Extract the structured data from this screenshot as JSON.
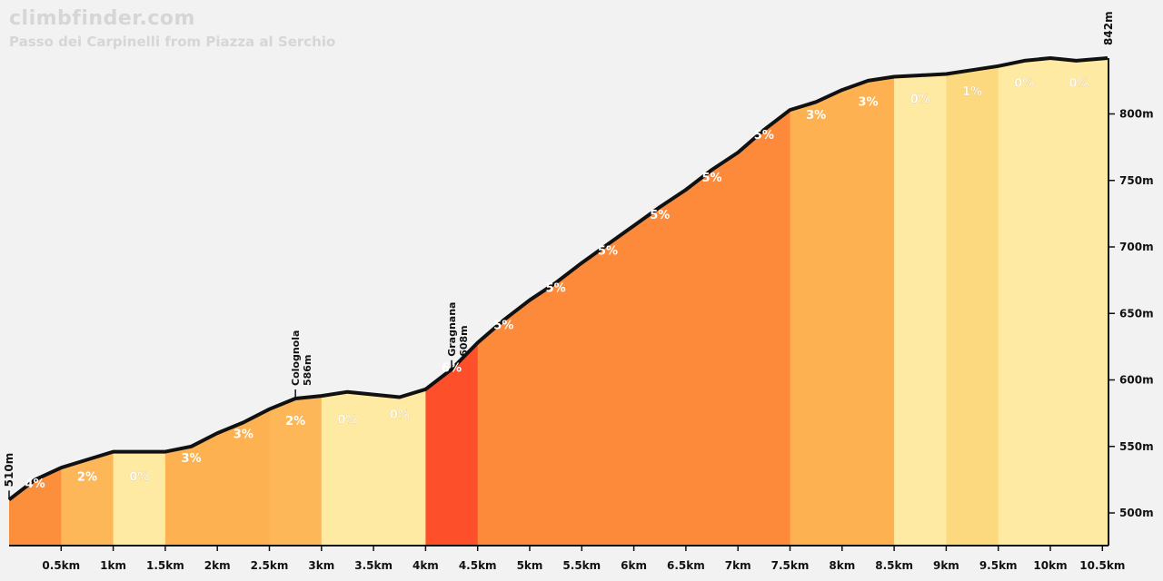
{
  "brand": "climbfinder.com",
  "title": "Passo dei Carpinelli from Piazza al Serchio",
  "colors": {
    "background": "#f2f2f2",
    "grade_0": "#ffeaa3",
    "grade_1": "#fcd87e",
    "grade_2": "#fdb758",
    "grade_3": "#fdb151",
    "grade_4": "#fc8f3c",
    "grade_5": "#fd8a3a",
    "grade_6": "#fc4f2a",
    "profile_line": "#111111"
  },
  "chart_data": {
    "type": "area",
    "xlabel": "",
    "ylabel": "",
    "xlim": [
      0,
      10.55
    ],
    "ylim": [
      475,
      860
    ],
    "x_ticks": [
      0.5,
      1,
      1.5,
      2,
      2.5,
      3,
      3.5,
      4,
      4.5,
      5,
      5.5,
      6,
      6.5,
      7,
      7.5,
      8,
      8.5,
      9,
      9.5,
      10,
      10.5
    ],
    "x_tick_labels": [
      "0.5km",
      "1km",
      "1.5km",
      "2km",
      "2.5km",
      "3km",
      "3.5km",
      "4km",
      "4.5km",
      "5km",
      "5.5km",
      "6km",
      "6.5km",
      "7km",
      "7.5km",
      "8km",
      "8.5km",
      "9km",
      "9.5km",
      "10km",
      "10.5km"
    ],
    "y_ticks": [
      500,
      550,
      600,
      650,
      700,
      750,
      800
    ],
    "y_tick_labels": [
      "500m",
      "550m",
      "600m",
      "650m",
      "700m",
      "750m",
      "800m"
    ],
    "start_label": "510m",
    "end_label": "842m",
    "profile": {
      "x": [
        0,
        0.25,
        0.5,
        0.75,
        1,
        1.25,
        1.5,
        1.75,
        2,
        2.25,
        2.5,
        2.75,
        3,
        3.25,
        3.5,
        3.75,
        4,
        4.25,
        4.5,
        4.75,
        5,
        5.25,
        5.5,
        5.75,
        6,
        6.25,
        6.5,
        6.75,
        7,
        7.25,
        7.5,
        7.75,
        8,
        8.25,
        8.5,
        8.75,
        9,
        9.25,
        9.5,
        9.75,
        10,
        10.25,
        10.55
      ],
      "y": [
        510,
        525,
        534,
        540,
        546,
        546,
        546,
        550,
        560,
        568,
        578,
        586,
        588,
        591,
        589,
        587,
        593,
        608,
        628,
        645,
        660,
        673,
        688,
        702,
        716,
        730,
        743,
        758,
        771,
        788,
        803,
        809,
        818,
        825,
        828,
        829,
        830,
        833,
        836,
        840,
        842,
        840,
        842
      ]
    },
    "segments": [
      {
        "x0": 0,
        "x1": 0.5,
        "grade": 4,
        "label": "4%"
      },
      {
        "x0": 0.5,
        "x1": 1,
        "grade": 2,
        "label": "2%"
      },
      {
        "x0": 1,
        "x1": 1.5,
        "grade": 0,
        "label": "0%"
      },
      {
        "x0": 1.5,
        "x1": 2,
        "grade": 3,
        "label": "3%"
      },
      {
        "x0": 2,
        "x1": 2.5,
        "grade": 3,
        "label": "3%"
      },
      {
        "x0": 2.5,
        "x1": 3,
        "grade": 2,
        "label": "2%"
      },
      {
        "x0": 3,
        "x1": 3.5,
        "grade": 0,
        "label": "0%"
      },
      {
        "x0": 3.5,
        "x1": 4,
        "grade": 0,
        "label": "0%"
      },
      {
        "x0": 4,
        "x1": 4.5,
        "grade": 6,
        "label": "6%"
      },
      {
        "x0": 4.5,
        "x1": 5,
        "grade": 5,
        "label": "5%"
      },
      {
        "x0": 5,
        "x1": 5.5,
        "grade": 5,
        "label": "5%"
      },
      {
        "x0": 5.5,
        "x1": 6,
        "grade": 5,
        "label": "5%"
      },
      {
        "x0": 6,
        "x1": 6.5,
        "grade": 5,
        "label": "5%"
      },
      {
        "x0": 6.5,
        "x1": 7,
        "grade": 5,
        "label": "5%"
      },
      {
        "x0": 7,
        "x1": 7.5,
        "grade": 5,
        "label": "5%"
      },
      {
        "x0": 7.5,
        "x1": 8,
        "grade": 3,
        "label": "3%"
      },
      {
        "x0": 8,
        "x1": 8.5,
        "grade": 3,
        "label": "3%"
      },
      {
        "x0": 8.5,
        "x1": 9,
        "grade": 0,
        "label": "0%"
      },
      {
        "x0": 9,
        "x1": 9.5,
        "grade": 1,
        "label": "1%"
      },
      {
        "x0": 9.5,
        "x1": 10,
        "grade": 0,
        "label": "0%"
      },
      {
        "x0": 10,
        "x1": 10.55,
        "grade": 0,
        "label": "0%"
      }
    ],
    "waypoints": [
      {
        "name": "Colognola",
        "elevation_label": "586m",
        "x": 2.75,
        "y": 586
      },
      {
        "name": "Gragnana",
        "elevation_label": "608m",
        "x": 4.25,
        "y": 608
      }
    ]
  }
}
